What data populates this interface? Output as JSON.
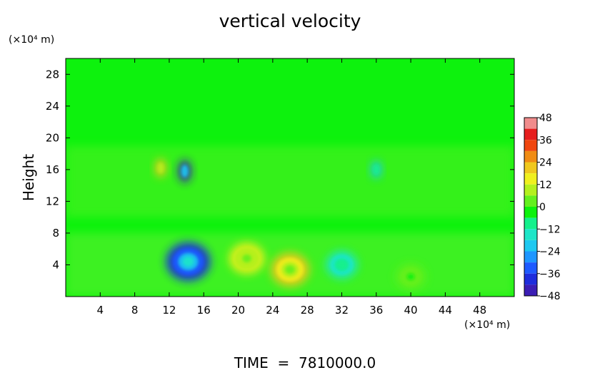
{
  "chart_data": {
    "type": "heatmap",
    "title": "vertical velocity",
    "ylabel": "Height",
    "xunit_label": "(×10⁴ m)",
    "yunit_label": "(×10⁴ m)",
    "footer": "TIME  =  7810000.0",
    "xlim": [
      0,
      52
    ],
    "ylim": [
      0,
      30
    ],
    "x_ticks": [
      4,
      8,
      12,
      16,
      20,
      24,
      28,
      32,
      36,
      40,
      44,
      48
    ],
    "y_ticks": [
      4,
      8,
      12,
      16,
      20,
      24,
      28
    ],
    "colorbar": {
      "ticks": [
        48,
        36,
        24,
        12,
        0,
        -12,
        -24,
        -36,
        -48
      ],
      "range": [
        -48,
        48
      ]
    },
    "features": [
      {
        "x": 14.2,
        "y": 4.4,
        "value": -38
      },
      {
        "x": 21.0,
        "y": 4.8,
        "value": 20
      },
      {
        "x": 26.0,
        "y": 3.4,
        "value": 26
      },
      {
        "x": 13.8,
        "y": 15.8,
        "value": -40
      },
      {
        "x": 11.0,
        "y": 16.2,
        "value": 22
      },
      {
        "x": 32.0,
        "y": 4.0,
        "value": -12
      },
      {
        "x": 40.0,
        "y": 2.5,
        "value": 8
      },
      {
        "x": 36.0,
        "y": 16.0,
        "value": -16
      }
    ]
  }
}
